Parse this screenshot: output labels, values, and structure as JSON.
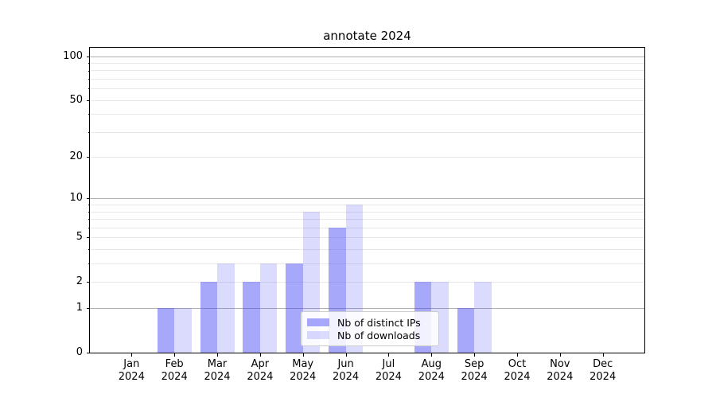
{
  "title": "annotate 2024",
  "chart_data": {
    "type": "bar",
    "title": "annotate 2024",
    "categories": [
      "Jan 2024",
      "Feb 2024",
      "Mar 2024",
      "Apr 2024",
      "May 2024",
      "Jun 2024",
      "Jul 2024",
      "Aug 2024",
      "Sep 2024",
      "Oct 2024",
      "Nov 2024",
      "Dec 2024"
    ],
    "series": [
      {
        "name": "Nb of distinct IPs",
        "color": "rgba(73,73,247,0.48)",
        "values": [
          0,
          1,
          2,
          2,
          3,
          6,
          0,
          2,
          1,
          0,
          0,
          0
        ]
      },
      {
        "name": "Nb of downloads",
        "color": "rgba(73,73,247,0.20)",
        "values": [
          0,
          1,
          3,
          3,
          8,
          9,
          0,
          2,
          2,
          0,
          0,
          0
        ]
      }
    ],
    "xlabel": "",
    "ylabel": "",
    "yscale": "log1p",
    "ylim": [
      0,
      114
    ],
    "yticks_labeled": [
      0,
      1,
      2,
      5,
      10,
      20,
      50,
      100
    ],
    "grid_major_values": [
      1,
      10,
      100
    ],
    "grid_minor_values": [
      2,
      3,
      4,
      5,
      6,
      7,
      8,
      9,
      20,
      30,
      40,
      50,
      60,
      70,
      80,
      90
    ],
    "grid": true,
    "legend_position": "lower center",
    "colors": {
      "grid_major": "#b0b0b0",
      "grid_minor": "#e8e8e8",
      "axis": "#000000",
      "text": "#000000",
      "legend_border": "#cccccc"
    }
  }
}
